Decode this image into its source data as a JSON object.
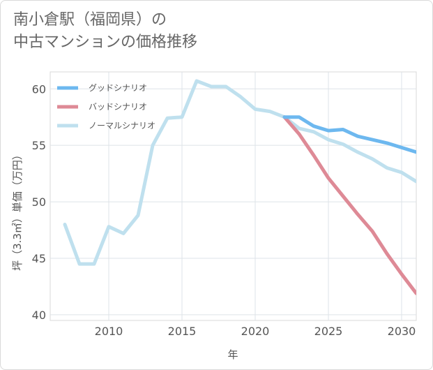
{
  "title_lines": [
    "南小倉駅（福岡県）の",
    "中古マンションの価格推移"
  ],
  "chart_data": {
    "type": "line",
    "xlabel": "年",
    "ylabel": "坪（3.3㎡）単価（万円）",
    "xlim": [
      2006,
      2031
    ],
    "ylim": [
      39.5,
      61.5
    ],
    "x_ticks": [
      2010,
      2015,
      2020,
      2025,
      2030
    ],
    "y_ticks": [
      40,
      45,
      50,
      55,
      60
    ],
    "grid": true,
    "legend_position": "top-left",
    "series": [
      {
        "name": "グッドシナリオ",
        "color": "#6db8ef",
        "x": [
          2022,
          2023,
          2024,
          2025,
          2026,
          2027,
          2028,
          2029,
          2030,
          2031
        ],
        "y": [
          57.5,
          57.5,
          56.7,
          56.3,
          56.4,
          55.8,
          55.5,
          55.2,
          54.8,
          54.4
        ]
      },
      {
        "name": "バッドシナリオ",
        "color": "#de8a96",
        "x": [
          2022,
          2023,
          2024,
          2025,
          2026,
          2027,
          2028,
          2029,
          2030,
          2031
        ],
        "y": [
          57.5,
          56.0,
          54.1,
          52.1,
          50.5,
          48.9,
          47.4,
          45.4,
          43.6,
          41.9
        ]
      },
      {
        "name": "ノーマルシナリオ",
        "color": "#bfe0ee",
        "x": [
          2007,
          2008,
          2009,
          2010,
          2011,
          2012,
          2013,
          2014,
          2015,
          2016,
          2017,
          2018,
          2019,
          2020,
          2021,
          2022,
          2023,
          2024,
          2025,
          2026,
          2027,
          2028,
          2029,
          2030,
          2031
        ],
        "y": [
          48.0,
          44.5,
          44.5,
          47.8,
          47.2,
          48.8,
          55.0,
          57.4,
          57.5,
          60.7,
          60.2,
          60.2,
          59.3,
          58.2,
          58.0,
          57.5,
          56.5,
          56.2,
          55.5,
          55.1,
          54.4,
          53.8,
          53.0,
          52.6,
          51.8
        ]
      }
    ]
  }
}
